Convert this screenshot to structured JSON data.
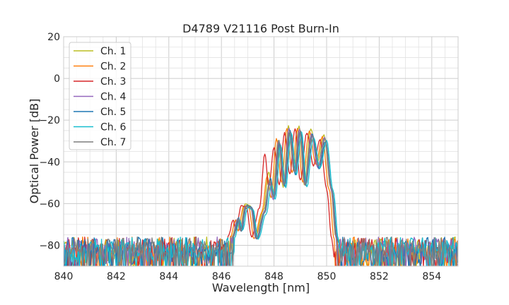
{
  "chart_data": {
    "type": "line",
    "title": "D4789 V21116 Post Burn-In",
    "xlabel": "Wavelength [nm]",
    "ylabel": "Optical Power [dB]",
    "xlim": [
      840,
      855
    ],
    "ylim": [
      -90,
      20
    ],
    "xticks": [
      "840",
      "842",
      "844",
      "846",
      "848",
      "850",
      "852",
      "854"
    ],
    "yticks": [
      "20",
      "0",
      "−20",
      "−40",
      "−60",
      "−80"
    ],
    "grid": true,
    "minor_grid": true,
    "legend_position": "upper-left",
    "noise_floor_db": -80,
    "series": [
      {
        "name": "Ch. 1",
        "color": "#bcbd22",
        "shift": 0.1,
        "points": [
          [
            846.3,
            -76
          ],
          [
            846.5,
            -68
          ],
          [
            846.6,
            -73
          ],
          [
            846.8,
            -60
          ],
          [
            847.0,
            -61
          ],
          [
            847.2,
            -76
          ],
          [
            847.5,
            -63
          ],
          [
            847.7,
            -45
          ],
          [
            847.85,
            -56
          ],
          [
            848.05,
            -30
          ],
          [
            848.25,
            -52
          ],
          [
            848.45,
            -23
          ],
          [
            848.65,
            -44
          ],
          [
            848.85,
            -23
          ],
          [
            849.05,
            -51
          ],
          [
            849.3,
            -24
          ],
          [
            849.55,
            -40
          ],
          [
            849.8,
            -27
          ],
          [
            850.05,
            -52
          ],
          [
            850.25,
            -76
          ],
          [
            850.35,
            -90
          ]
        ]
      },
      {
        "name": "Ch. 2",
        "color": "#ff7f0e",
        "shift": 0.04,
        "points": [
          [
            846.3,
            -76
          ],
          [
            846.5,
            -68
          ],
          [
            846.6,
            -73
          ],
          [
            846.8,
            -61
          ],
          [
            847.0,
            -62
          ],
          [
            847.2,
            -77
          ],
          [
            847.5,
            -64
          ],
          [
            847.7,
            -47
          ],
          [
            847.85,
            -57
          ],
          [
            848.05,
            -29
          ],
          [
            848.25,
            -50
          ],
          [
            848.45,
            -24
          ],
          [
            848.65,
            -45
          ],
          [
            848.85,
            -24
          ],
          [
            849.05,
            -50
          ],
          [
            849.3,
            -25
          ],
          [
            849.55,
            -41
          ],
          [
            849.8,
            -28
          ],
          [
            850.05,
            -53
          ],
          [
            850.25,
            -77
          ]
        ]
      },
      {
        "name": "Ch. 3",
        "color": "#d62728",
        "shift": -0.05,
        "points": [
          [
            846.3,
            -76
          ],
          [
            846.5,
            -68
          ],
          [
            846.6,
            -73
          ],
          [
            846.8,
            -61
          ],
          [
            847.0,
            -62
          ],
          [
            847.2,
            -76
          ],
          [
            847.5,
            -62
          ],
          [
            847.7,
            -36
          ],
          [
            847.85,
            -52
          ],
          [
            848.05,
            -33
          ],
          [
            848.25,
            -51
          ],
          [
            848.45,
            -26
          ],
          [
            848.65,
            -46
          ],
          [
            848.85,
            -24
          ],
          [
            849.05,
            -49
          ],
          [
            849.3,
            -26
          ],
          [
            849.55,
            -42
          ],
          [
            849.8,
            -29
          ],
          [
            850.05,
            -53
          ],
          [
            850.25,
            -77
          ]
        ]
      },
      {
        "name": "Ch. 4",
        "color": "#9467bd",
        "shift": 0.12,
        "points": [
          [
            846.3,
            -76
          ],
          [
            846.5,
            -67
          ],
          [
            846.6,
            -73
          ],
          [
            846.8,
            -61
          ],
          [
            847.0,
            -62
          ],
          [
            847.2,
            -77
          ],
          [
            847.5,
            -64
          ],
          [
            847.7,
            -50
          ],
          [
            847.85,
            -58
          ],
          [
            848.05,
            -30
          ],
          [
            848.25,
            -51
          ],
          [
            848.45,
            -24
          ],
          [
            848.65,
            -45
          ],
          [
            848.85,
            -24
          ],
          [
            849.05,
            -51
          ],
          [
            849.3,
            -27
          ],
          [
            849.55,
            -43
          ],
          [
            849.8,
            -28
          ],
          [
            850.05,
            -53
          ],
          [
            850.25,
            -77
          ]
        ]
      },
      {
        "name": "Ch. 5",
        "color": "#1f77b4",
        "shift": 0.16,
        "points": [
          [
            846.3,
            -76
          ],
          [
            846.5,
            -67
          ],
          [
            846.6,
            -73
          ],
          [
            846.8,
            -61
          ],
          [
            847.0,
            -62
          ],
          [
            847.2,
            -77
          ],
          [
            847.5,
            -64
          ],
          [
            847.7,
            -48
          ],
          [
            847.85,
            -57
          ],
          [
            848.05,
            -31
          ],
          [
            848.25,
            -52
          ],
          [
            848.45,
            -25
          ],
          [
            848.65,
            -46
          ],
          [
            848.85,
            -25
          ],
          [
            849.05,
            -51
          ],
          [
            849.3,
            -27
          ],
          [
            849.55,
            -43
          ],
          [
            849.8,
            -30
          ],
          [
            850.05,
            -54
          ],
          [
            850.25,
            -77
          ]
        ]
      },
      {
        "name": "Ch. 6",
        "color": "#17becf",
        "shift": 0.2,
        "points": [
          [
            846.3,
            -76
          ],
          [
            846.5,
            -68
          ],
          [
            846.6,
            -73
          ],
          [
            846.8,
            -62
          ],
          [
            847.0,
            -63
          ],
          [
            847.2,
            -77
          ],
          [
            847.5,
            -65
          ],
          [
            847.7,
            -51
          ],
          [
            847.85,
            -58
          ],
          [
            848.05,
            -32
          ],
          [
            848.25,
            -52
          ],
          [
            848.45,
            -26
          ],
          [
            848.65,
            -46
          ],
          [
            848.85,
            -26
          ],
          [
            849.05,
            -52
          ],
          [
            849.3,
            -28
          ],
          [
            849.55,
            -43
          ],
          [
            849.8,
            -30
          ],
          [
            850.05,
            -54
          ],
          [
            850.25,
            -77
          ]
        ]
      },
      {
        "name": "Ch. 7",
        "color": "#7f7f7f",
        "shift": 0.14,
        "points": [
          [
            846.3,
            -76
          ],
          [
            846.5,
            -67
          ],
          [
            846.6,
            -73
          ],
          [
            846.8,
            -61
          ],
          [
            847.0,
            -62
          ],
          [
            847.2,
            -77
          ],
          [
            847.5,
            -64
          ],
          [
            847.7,
            -49
          ],
          [
            847.85,
            -57
          ],
          [
            848.05,
            -30
          ],
          [
            848.25,
            -51
          ],
          [
            848.45,
            -25
          ],
          [
            848.65,
            -45
          ],
          [
            848.85,
            -25
          ],
          [
            849.05,
            -51
          ],
          [
            849.3,
            -27
          ],
          [
            849.55,
            -42
          ],
          [
            849.8,
            -29
          ],
          [
            850.05,
            -53
          ],
          [
            850.25,
            -77
          ]
        ]
      }
    ]
  }
}
